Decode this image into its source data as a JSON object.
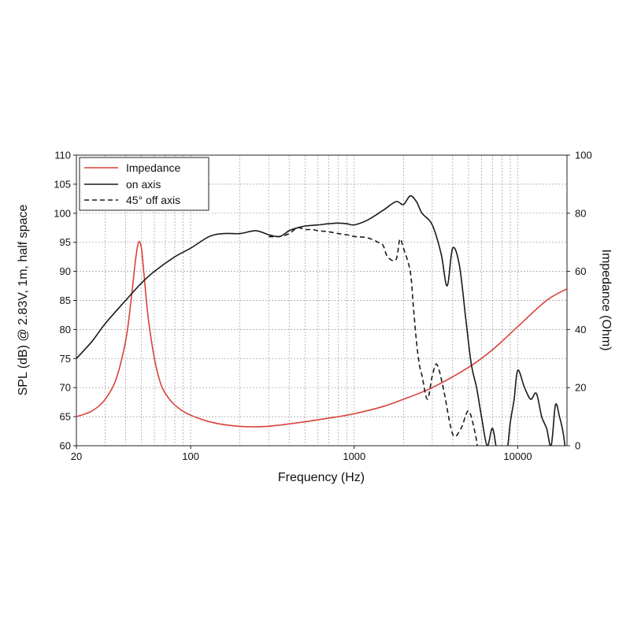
{
  "chart_data": {
    "type": "line",
    "xlabel": "Frequency (Hz)",
    "ylabel_left": "SPL (dB) @ 2.83V, 1m, half space",
    "ylabel_right": "Impedance (Ohm)",
    "x_scale": "log",
    "xlim": [
      20,
      20000
    ],
    "ylim_left": [
      60,
      110
    ],
    "ylim_right": [
      0,
      100
    ],
    "x_tick_labels": [
      "20",
      "100",
      "1000",
      "10000"
    ],
    "x_tick_values": [
      20,
      100,
      1000,
      10000
    ],
    "y_left_ticks": [
      "60",
      "65",
      "70",
      "75",
      "80",
      "85",
      "90",
      "95",
      "100",
      "105",
      "110"
    ],
    "y_right_ticks": [
      "0",
      "20",
      "40",
      "60",
      "80",
      "100"
    ],
    "grid": true,
    "legend_position": "top-left",
    "series": [
      {
        "name": "Impedance",
        "axis": "right",
        "color": "#d9413a",
        "dash": "solid",
        "x": [
          20,
          25,
          30,
          35,
          40,
          43,
          46,
          48,
          50,
          52,
          55,
          60,
          65,
          70,
          80,
          100,
          150,
          250,
          400,
          700,
          1000,
          1500,
          2000,
          3000,
          5000,
          7000,
          10000,
          15000,
          20000
        ],
        "y": [
          10,
          12,
          16,
          23,
          36,
          49,
          64,
          70,
          68,
          58,
          44,
          30,
          22,
          18,
          14,
          10.5,
          7.5,
          6.5,
          7.5,
          9.5,
          11,
          13.5,
          16,
          20,
          27,
          33,
          41,
          50,
          54
        ]
      },
      {
        "name": "on axis",
        "axis": "left",
        "color": "#1a1a1a",
        "dash": "solid",
        "x": [
          20,
          25,
          30,
          40,
          50,
          60,
          80,
          100,
          130,
          160,
          200,
          250,
          300,
          350,
          400,
          450,
          500,
          600,
          700,
          800,
          900,
          1000,
          1200,
          1500,
          1800,
          2000,
          2200,
          2400,
          2600,
          3000,
          3400,
          3700,
          4000,
          4400,
          4800,
          5200,
          5600,
          6000,
          6500,
          7000,
          7500,
          8000,
          8500,
          9000,
          9500,
          10000,
          11000,
          12000,
          13000,
          14000,
          15000,
          16000,
          17000,
          18000,
          19000,
          20000
        ],
        "y": [
          75,
          78,
          81,
          85,
          88,
          90,
          92.5,
          94,
          96,
          96.5,
          96.5,
          97,
          96.3,
          96,
          97,
          97.5,
          97.8,
          98,
          98.2,
          98.3,
          98.2,
          98,
          98.8,
          100.5,
          102,
          101.5,
          103,
          102,
          100,
          98,
          93,
          87.5,
          94,
          91,
          82,
          74,
          70,
          65,
          60,
          63,
          59,
          60,
          58,
          64,
          68,
          73,
          70,
          68,
          69,
          65,
          63,
          60,
          67,
          65,
          62,
          57
        ]
      },
      {
        "name": "45° off axis",
        "axis": "left",
        "color": "#1a1a1a",
        "dash": "6,4",
        "x": [
          300,
          350,
          400,
          450,
          500,
          550,
          600,
          700,
          800,
          900,
          1000,
          1200,
          1400,
          1500,
          1600,
          1800,
          1900,
          2000,
          2200,
          2300,
          2400,
          2500,
          2600,
          2800,
          3000,
          3200,
          3500,
          4000,
          4500,
          5000,
          5500,
          5800,
          6200,
          6600
        ],
        "y": [
          96,
          96,
          96.5,
          97.5,
          97.2,
          97.2,
          97,
          96.8,
          96.5,
          96.3,
          96,
          95.8,
          95,
          94.5,
          92.5,
          92,
          95.5,
          94,
          90,
          84,
          78,
          74,
          72,
          68,
          72,
          74,
          70,
          62,
          63,
          66,
          62,
          58,
          56,
          60
        ]
      }
    ]
  }
}
